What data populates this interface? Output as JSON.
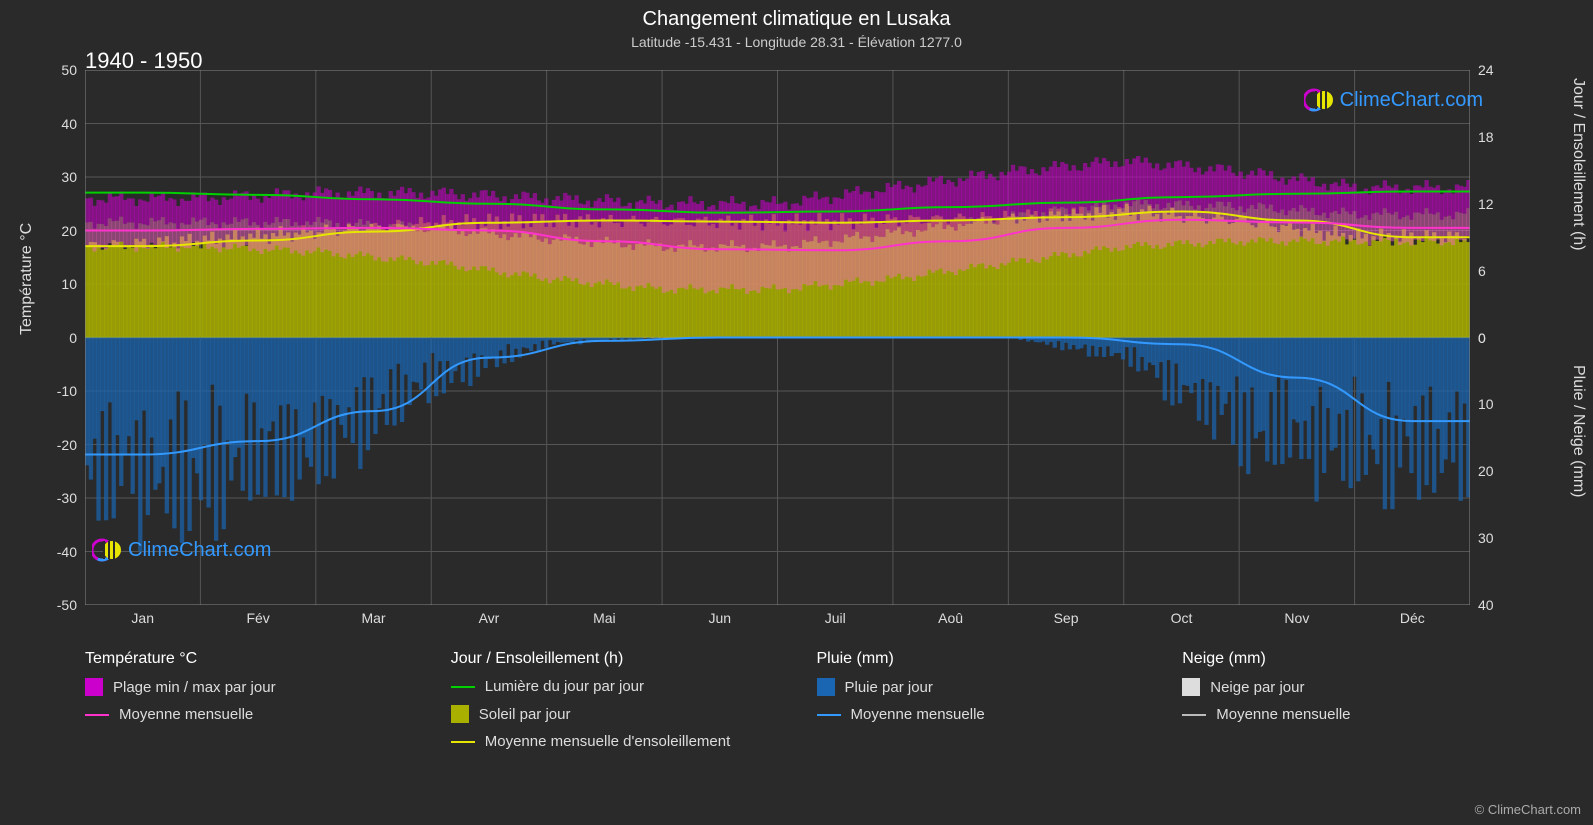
{
  "title": "Changement climatique en Lusaka",
  "subtitle": "Latitude -15.431 - Longitude 28.31 - Élévation 1277.0",
  "period": "1940 - 1950",
  "axes": {
    "left_label": "Température °C",
    "right_top_label": "Jour / Ensoleillement (h)",
    "right_bottom_label": "Pluie / Neige (mm)",
    "left_ticks": [
      50,
      40,
      30,
      20,
      10,
      0,
      -10,
      -20,
      -30,
      -40,
      -50
    ],
    "right_top_ticks": [
      24,
      18,
      12,
      6,
      0
    ],
    "right_bottom_ticks": [
      0,
      10,
      20,
      30,
      40
    ],
    "months": [
      "Jan",
      "Fév",
      "Mar",
      "Avr",
      "Mai",
      "Jun",
      "Juil",
      "Aoû",
      "Sep",
      "Oct",
      "Nov",
      "Déc"
    ]
  },
  "series": {
    "daylight_line": {
      "color": "#00d000",
      "values": [
        13.0,
        12.8,
        12.4,
        12.0,
        11.5,
        11.2,
        11.3,
        11.7,
        12.1,
        12.6,
        12.9,
        13.1
      ]
    },
    "sun_mean_line": {
      "color": "#e6e600",
      "values": [
        8.2,
        8.7,
        9.5,
        10.3,
        10.5,
        10.4,
        10.3,
        10.5,
        10.8,
        11.3,
        10.5,
        9.0
      ]
    },
    "temp_mean_line": {
      "color": "#ff33cc",
      "values": [
        20.0,
        20.3,
        20.5,
        20.0,
        18.0,
        16.5,
        16.3,
        18.0,
        20.5,
        22.0,
        21.5,
        20.5
      ]
    },
    "rain_mean_line": {
      "color": "#3399ff",
      "values": [
        17.5,
        15.5,
        11.0,
        3.0,
        0.5,
        0.0,
        0.0,
        0.0,
        0.0,
        1.0,
        6.0,
        12.5
      ]
    },
    "temp_band": {
      "color_top": "#cc00cc",
      "color_mid": "#ff66cc",
      "hi": [
        26,
        26,
        27,
        27,
        26,
        25,
        25,
        28,
        31,
        33,
        31,
        28
      ],
      "lo": [
        17,
        17,
        16,
        14,
        11,
        9,
        9,
        11,
        14,
        17,
        18,
        18
      ]
    },
    "sun_band": {
      "color": "#aab000",
      "hi": [
        8.2,
        8.7,
        9.5,
        10.3,
        10.5,
        10.4,
        10.3,
        10.5,
        10.8,
        11.3,
        10.5,
        9.0
      ]
    },
    "rain_band": {
      "color": "#1a66b3",
      "hi": [
        22,
        22,
        17,
        7,
        1,
        0,
        0,
        0,
        0,
        3,
        14,
        18
      ]
    }
  },
  "colors": {
    "background": "#2a2a2a",
    "grid": "#555555",
    "grid_zero": "#888888",
    "text": "#ffffff",
    "subtext": "#cccccc",
    "tick_text": "#dddddd",
    "temp_range": "#cc00cc",
    "temp_mean": "#ff33cc",
    "daylight": "#00d000",
    "sun": "#aab000",
    "sun_line": "#e6e600",
    "rain": "#1a66b3",
    "rain_line": "#3399ff",
    "snow": "#dddddd",
    "snow_line": "#bbbbbb",
    "watermark": "#3399ff"
  },
  "legend": {
    "c1_title": "Température °C",
    "c1_i1": "Plage min / max par jour",
    "c1_i2": "Moyenne mensuelle",
    "c2_title": "Jour / Ensoleillement (h)",
    "c2_i1": "Lumière du jour par jour",
    "c2_i2": "Soleil par jour",
    "c2_i3": "Moyenne mensuelle d'ensoleillement",
    "c3_title": "Pluie (mm)",
    "c3_i1": "Pluie par jour",
    "c3_i2": "Moyenne mensuelle",
    "c4_title": "Neige (mm)",
    "c4_i1": "Neige par jour",
    "c4_i2": "Moyenne mensuelle"
  },
  "watermark": "ClimeChart.com",
  "copyright": "© ClimeChart.com"
}
